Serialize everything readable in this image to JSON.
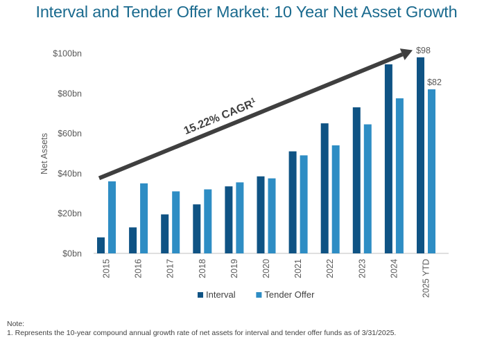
{
  "chart_data": {
    "type": "bar",
    "title": "Interval and Tender Offer Market: 10 Year Net Asset Growth",
    "xlabel": "",
    "ylabel": "Net Assets",
    "ylim": [
      0,
      100
    ],
    "yticks": [
      {
        "value": 0,
        "label": "$0bn"
      },
      {
        "value": 20,
        "label": "$20bn"
      },
      {
        "value": 40,
        "label": "$40bn"
      },
      {
        "value": 60,
        "label": "$60bn"
      },
      {
        "value": 80,
        "label": "$80bn"
      },
      {
        "value": 100,
        "label": "$100bn"
      }
    ],
    "grid": false,
    "categories": [
      "2015",
      "2016",
      "2017",
      "2018",
      "2019",
      "2020",
      "2021",
      "2022",
      "2023",
      "2024",
      "2025 YTD"
    ],
    "series": [
      {
        "name": "Interval",
        "color": "#0f5384",
        "values": [
          8,
          13,
          19.5,
          24.5,
          33.5,
          38.5,
          51,
          65,
          73,
          94.5,
          98
        ]
      },
      {
        "name": "Tender Offer",
        "color": "#2e8dc4",
        "values": [
          36,
          35,
          31,
          32,
          35.5,
          37.5,
          49,
          54,
          64.5,
          77.5,
          82
        ]
      }
    ],
    "data_labels": [
      {
        "category": "2025 YTD",
        "series": "Interval",
        "text": "$98"
      },
      {
        "category": "2025 YTD",
        "series": "Tender Offer",
        "text": "$82"
      }
    ],
    "annotation": {
      "text": "15.22% CAGR",
      "superscript": "1",
      "arrow_from": {
        "category": "2015",
        "value": 40
      },
      "arrow_to": {
        "category": "2025 YTD",
        "value": 104
      }
    },
    "legend": {
      "position": "bottom-center",
      "entries": [
        "Interval",
        "Tender Offer"
      ]
    }
  },
  "notes": {
    "heading": "Note:",
    "line1": "1. Represents the 10-year compound annual growth rate of net assets for interval and tender offer funds as of 3/31/2025."
  },
  "colors": {
    "title": "#1a6a8e",
    "interval": "#0f5384",
    "tender": "#2e8dc4",
    "arrow": "#3f3f3f",
    "axis_text": "#595959"
  }
}
